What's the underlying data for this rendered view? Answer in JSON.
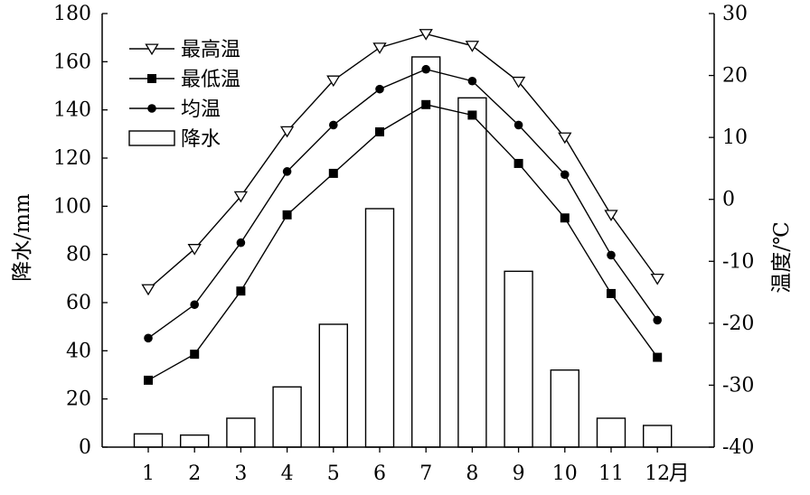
{
  "chart_data": {
    "type": "bar+line",
    "categories": [
      "1",
      "2",
      "3",
      "4",
      "5",
      "6",
      "7",
      "8",
      "9",
      "10",
      "11",
      "12"
    ],
    "x_unit": "月",
    "y_left": {
      "label": "降水/mm",
      "min": 0,
      "max": 180,
      "ticks": [
        0,
        20,
        40,
        60,
        80,
        100,
        120,
        140,
        160,
        180
      ]
    },
    "y_right": {
      "label": "温度/℃",
      "min": -40,
      "max": 30,
      "ticks": [
        -40,
        -30,
        -20,
        -10,
        0,
        10,
        20,
        30
      ]
    },
    "bars": {
      "name": "降水",
      "axis": "left",
      "values": [
        5.5,
        5,
        12,
        25,
        51,
        99,
        162,
        145,
        73,
        32,
        12,
        9
      ]
    },
    "series": [
      {
        "name": "最高温",
        "axis": "right",
        "marker": "triangle-down-open",
        "values": [
          -14.5,
          -8,
          0.5,
          11,
          19.2,
          24.5,
          26.7,
          24.8,
          19,
          10,
          -2.5,
          -12.8
        ]
      },
      {
        "name": "最低温",
        "axis": "right",
        "marker": "square-filled",
        "values": [
          -29.2,
          -25,
          -14.8,
          -2.5,
          4.2,
          10.9,
          15.3,
          13.6,
          5.8,
          -3,
          -15.2,
          -25.5
        ]
      },
      {
        "name": "均温",
        "axis": "right",
        "marker": "circle-filled",
        "values": [
          -22.4,
          -17,
          -7,
          4.5,
          12,
          17.8,
          21,
          19.1,
          12,
          4,
          -9,
          -19.5
        ]
      }
    ],
    "legend": {
      "position": "top-left",
      "entries": [
        "最高温",
        "最低温",
        "均温",
        "降水"
      ]
    },
    "grid": false
  }
}
